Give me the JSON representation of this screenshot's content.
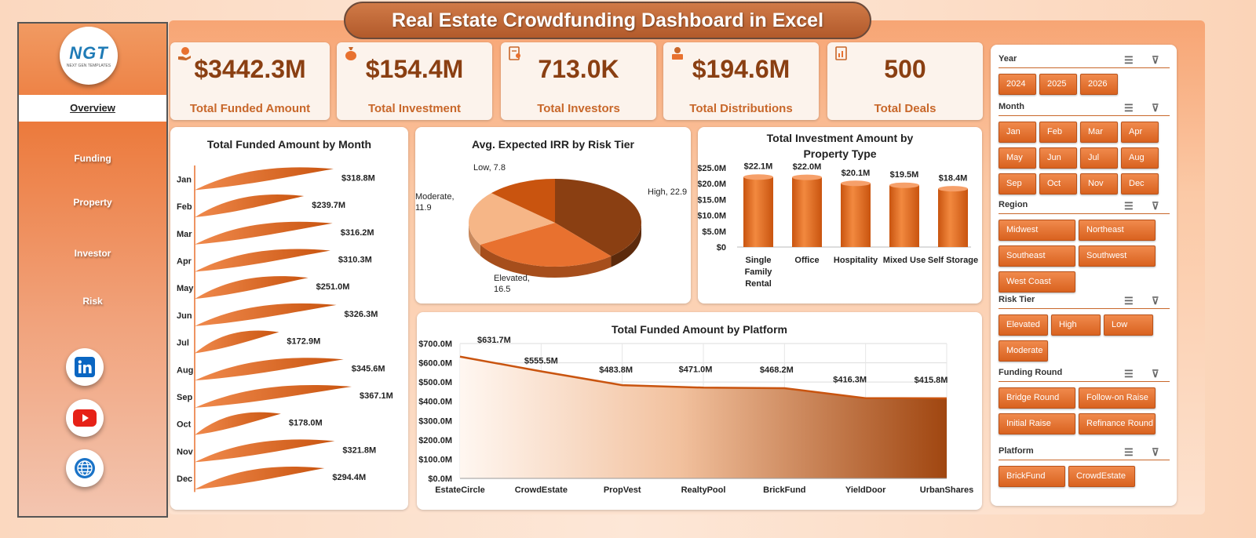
{
  "title": "Real Estate Crowdfunding Dashboard in Excel",
  "logo": {
    "text": "NGT",
    "subtext": "NEXT GEN TEMPLATES"
  },
  "nav": {
    "items": [
      "Overview",
      "Funding",
      "Property",
      "Investor",
      "Risk"
    ],
    "active": "Overview"
  },
  "social": [
    "linkedin-icon",
    "youtube-icon",
    "globe-icon"
  ],
  "kpis": [
    {
      "value": "$3442.3M",
      "label": "Total Funded Amount",
      "icon": "money-hand-icon"
    },
    {
      "value": "$154.4M",
      "label": "Total Investment",
      "icon": "money-bag-icon"
    },
    {
      "value": "713.0K",
      "label": "Total Investors",
      "icon": "clipboard-user-icon"
    },
    {
      "value": "$194.6M",
      "label": "Total Distributions",
      "icon": "cash-stack-icon"
    },
    {
      "value": "500",
      "label": "Total Deals",
      "icon": "document-chart-icon"
    }
  ],
  "colors": {
    "accent": "#e8712f",
    "dark": "#8a3f12"
  },
  "chart_data": [
    {
      "type": "bar",
      "title": "Total Funded Amount by Month",
      "categories": [
        "Jan",
        "Feb",
        "Mar",
        "Apr",
        "May",
        "Jun",
        "Jul",
        "Aug",
        "Sep",
        "Oct",
        "Nov",
        "Dec"
      ],
      "values": [
        318.8,
        239.7,
        316.2,
        310.3,
        251.0,
        326.3,
        172.9,
        345.6,
        367.1,
        178.0,
        321.8,
        294.4
      ],
      "labels": [
        "$318.8M",
        "$239.7M",
        "$316.2M",
        "$310.3M",
        "$251.0M",
        "$326.3M",
        "$172.9M",
        "$345.6M",
        "$367.1M",
        "$178.0M",
        "$321.8M",
        "$294.4M"
      ]
    },
    {
      "type": "pie",
      "title": "Avg. Expected IRR by Risk Tier",
      "categories": [
        "High",
        "Elevated",
        "Moderate",
        "Low"
      ],
      "values": [
        22.9,
        16.5,
        11.9,
        7.8
      ],
      "labels": [
        "High, 22.9",
        "Elevated,\n16.5",
        "Moderate,\n11.9",
        "Low, 7.8"
      ]
    },
    {
      "type": "bar",
      "title": "Total Investment Amount by Property Type",
      "categories": [
        "Single Family Rental",
        "Office",
        "Hospitality",
        "Mixed Use",
        "Self Storage"
      ],
      "values": [
        22.1,
        22.0,
        20.1,
        19.5,
        18.4
      ],
      "labels": [
        "$22.1M",
        "$22.0M",
        "$20.1M",
        "$19.5M",
        "$18.4M"
      ],
      "yticks": [
        "$0",
        "$5.0M",
        "$10.0M",
        "$15.0M",
        "$20.0M",
        "$25.0M"
      ],
      "ylim": [
        0,
        25
      ]
    },
    {
      "type": "area",
      "title": "Total Funded Amount by Platform",
      "categories": [
        "EstateCircle",
        "CrowdEstate",
        "PropVest",
        "RealtyPool",
        "BrickFund",
        "YieldDoor",
        "UrbanShares"
      ],
      "values": [
        631.7,
        555.5,
        483.8,
        471.0,
        468.2,
        416.3,
        415.8
      ],
      "labels": [
        "$631.7M",
        "$555.5M",
        "$483.8M",
        "$471.0M",
        "$468.2M",
        "$416.3M",
        "$415.8M"
      ],
      "yticks": [
        "$0.0M",
        "$100.0M",
        "$200.0M",
        "$300.0M",
        "$400.0M",
        "$500.0M",
        "$600.0M",
        "$700.0M"
      ],
      "ylim": [
        0,
        700
      ]
    }
  ],
  "slicers": [
    {
      "title": "Year",
      "items": [
        "2024",
        "2025",
        "2026"
      ]
    },
    {
      "title": "Month",
      "items": [
        "Jan",
        "Feb",
        "Mar",
        "Apr",
        "May",
        "Jun",
        "Jul",
        "Aug",
        "Sep",
        "Oct",
        "Nov",
        "Dec"
      ]
    },
    {
      "title": "Region",
      "items": [
        "Midwest",
        "Northeast",
        "Southeast",
        "Southwest",
        "West Coast"
      ]
    },
    {
      "title": "Risk Tier",
      "items": [
        "Elevated",
        "High",
        "Low",
        "Moderate"
      ]
    },
    {
      "title": "Funding Round",
      "items": [
        "Bridge Round",
        "Follow-on Raise",
        "Initial Raise",
        "Refinance Round"
      ]
    },
    {
      "title": "Platform",
      "items": [
        "BrickFund",
        "CrowdEstate"
      ]
    }
  ]
}
